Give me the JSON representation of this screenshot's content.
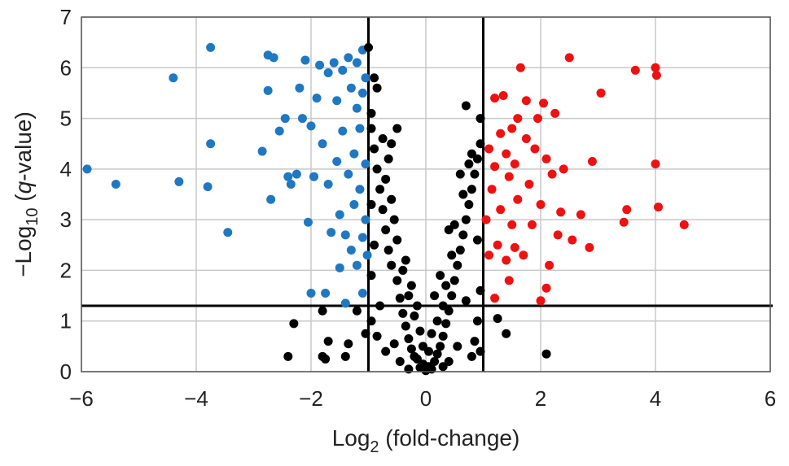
{
  "chart_data": {
    "type": "scatter",
    "xlabel": {
      "base": "Log",
      "sub": "2",
      "rest": " (fold-change)"
    },
    "ylabel": {
      "prefix": "−Log",
      "sub": "10",
      "open": " (",
      "italic": "q",
      "rest": "-value)"
    },
    "xlim": [
      -6,
      6
    ],
    "ylim": [
      0,
      7
    ],
    "xticks": [
      {
        "value": -6,
        "label": "−6"
      },
      {
        "value": -4,
        "label": "−4"
      },
      {
        "value": -2,
        "label": "−2"
      },
      0,
      2,
      4,
      6
    ],
    "yticks": [
      0,
      1,
      2,
      3,
      4,
      5,
      6,
      7
    ],
    "grid": true,
    "thresholds": {
      "x": [
        -1,
        1
      ],
      "y": [
        1.3
      ]
    },
    "series": [
      {
        "color": "#1f78c1",
        "x": [
          -5.9,
          -5.4,
          -4.4,
          -4.3,
          -3.75,
          -3.75,
          -3.8,
          -3.45,
          -2.85,
          -2.75,
          -2.65,
          -2.75,
          -2.7,
          -2.55,
          -2.45,
          -2.4,
          -2.35,
          -2.25,
          -2.2,
          -2.15,
          -2.1,
          -2.05,
          -2.0,
          -2.0,
          -1.95,
          -1.9,
          -1.85,
          -1.8,
          -1.75,
          -1.7,
          -1.7,
          -1.65,
          -1.6,
          -1.55,
          -1.55,
          -1.5,
          -1.5,
          -1.45,
          -1.45,
          -1.4,
          -1.4,
          -1.35,
          -1.35,
          -1.3,
          -1.3,
          -1.25,
          -1.25,
          -1.2,
          -1.2,
          -1.2,
          -1.15,
          -1.15,
          -1.1,
          -1.1,
          -1.1,
          -1.1,
          -1.05,
          -1.05,
          -1.05,
          -1.02
        ],
        "values": [
          4.0,
          3.7,
          5.8,
          3.75,
          6.4,
          4.5,
          3.65,
          2.75,
          4.35,
          6.25,
          6.2,
          5.55,
          3.4,
          4.75,
          5.0,
          3.85,
          3.7,
          3.9,
          5.6,
          5.0,
          6.15,
          2.95,
          1.55,
          4.85,
          3.85,
          5.4,
          6.05,
          4.5,
          1.55,
          3.7,
          5.9,
          2.75,
          6.1,
          4.15,
          5.35,
          2.05,
          3.1,
          4.75,
          5.95,
          1.35,
          2.7,
          3.9,
          6.2,
          5.6,
          2.4,
          4.3,
          3.3,
          6.1,
          5.2,
          2.1,
          3.6,
          4.8,
          1.55,
          2.65,
          5.5,
          6.35,
          3.0,
          4.1,
          5.8,
          2.3
        ]
      },
      {
        "color": "#000000",
        "x": [
          0,
          0.05,
          -0.05,
          0.1,
          -0.1,
          0.15,
          -0.15,
          0.2,
          -0.2,
          0.25,
          -0.25,
          0.05,
          -0.05,
          0.3,
          -0.3,
          0.35,
          -0.35,
          0.1,
          -0.1,
          0.4,
          -0.4,
          0.2,
          -0.2,
          0.45,
          -0.45,
          0.3,
          -0.3,
          0.5,
          -0.5,
          0.35,
          -0.6,
          0.55,
          -0.4,
          0.6,
          -0.65,
          0.45,
          -0.5,
          0.65,
          -0.7,
          0.7,
          -0.55,
          0.5,
          -0.75,
          0.75,
          -0.6,
          0.8,
          -0.8,
          0.65,
          -0.7,
          0.85,
          -0.85,
          0.9,
          -0.65,
          0.75,
          -0.9,
          -0.5,
          -0.75,
          -0.95,
          0.8,
          0.95,
          0.95,
          0.7,
          -0.95,
          -0.9,
          -1.0,
          -0.85,
          -0.6,
          0.6,
          0.4,
          -0.35,
          0.25,
          -0.25,
          0.15,
          -0.15,
          -0.95,
          -0.9,
          -0.95,
          0.9,
          0.95,
          0.9,
          -0.95,
          -0.85,
          0.85,
          0.8,
          -0.7,
          -1.2,
          -1.8,
          -1.7,
          -2.3,
          -2.4,
          -1.8,
          -1.75,
          -1.35,
          -1.4,
          -1.05,
          1.25,
          1.4,
          0.95,
          2.1,
          -0.8,
          0.7,
          -0.55,
          0.55,
          -0.45,
          0.4,
          0.3,
          -0.3
        ],
        "values": [
          0.02,
          0.1,
          0.15,
          0.05,
          0.08,
          0.2,
          0.25,
          0.35,
          0.3,
          0.5,
          0.45,
          0.4,
          0.5,
          0.7,
          0.65,
          0.95,
          0.9,
          0.75,
          0.8,
          1.2,
          1.15,
          1.0,
          1.1,
          1.5,
          1.45,
          1.3,
          1.5,
          1.8,
          1.8,
          1.7,
          2.1,
          2.1,
          2.0,
          2.4,
          2.4,
          2.3,
          2.6,
          2.7,
          2.8,
          3.0,
          3.0,
          2.9,
          3.2,
          3.3,
          3.4,
          3.6,
          3.6,
          3.5,
          3.8,
          3.9,
          4.0,
          4.2,
          4.2,
          4.1,
          4.4,
          4.8,
          4.6,
          4.8,
          4.3,
          4.5,
          5.0,
          5.25,
          5.1,
          5.8,
          6.4,
          5.6,
          4.5,
          3.9,
          2.8,
          2.2,
          1.9,
          1.7,
          1.5,
          1.3,
          3.3,
          2.5,
          1.9,
          2.6,
          1.6,
          1.0,
          1.0,
          0.7,
          0.6,
          0.3,
          0.4,
          1.2,
          1.2,
          0.6,
          0.95,
          0.3,
          0.3,
          0.25,
          0.55,
          0.3,
          0.75,
          1.05,
          0.75,
          0.4,
          0.35,
          1.3,
          1.4,
          0.55,
          0.5,
          0.2,
          0.2,
          0.1,
          0.05
        ]
      },
      {
        "color": "#ee1111",
        "x": [
          1.05,
          1.1,
          1.1,
          1.15,
          1.2,
          1.2,
          1.25,
          1.3,
          1.3,
          1.35,
          1.4,
          1.4,
          1.45,
          1.5,
          1.5,
          1.55,
          1.6,
          1.6,
          1.65,
          1.7,
          1.75,
          1.75,
          1.8,
          1.85,
          1.9,
          1.95,
          2.0,
          2.0,
          2.05,
          2.1,
          2.1,
          2.15,
          2.2,
          2.25,
          2.3,
          2.4,
          2.5,
          2.55,
          2.7,
          2.85,
          2.9,
          3.05,
          3.45,
          3.5,
          3.65,
          4.0,
          4.0,
          4.02,
          4.05,
          4.5,
          1.45,
          1.2,
          2.35,
          1.55
        ],
        "values": [
          3.0,
          2.3,
          4.4,
          3.6,
          4.05,
          5.4,
          2.5,
          4.7,
          3.2,
          5.45,
          4.3,
          2.2,
          3.85,
          4.8,
          2.9,
          4.1,
          5.0,
          3.4,
          6.0,
          2.3,
          4.6,
          5.35,
          3.7,
          2.9,
          4.4,
          5.0,
          1.4,
          3.3,
          5.3,
          1.65,
          4.2,
          2.1,
          3.9,
          5.1,
          2.7,
          4.0,
          6.2,
          2.6,
          3.1,
          2.45,
          4.15,
          5.5,
          2.95,
          3.2,
          5.95,
          6.0,
          4.1,
          5.85,
          3.25,
          2.9,
          1.8,
          1.45,
          3.15,
          2.45
        ]
      }
    ]
  }
}
